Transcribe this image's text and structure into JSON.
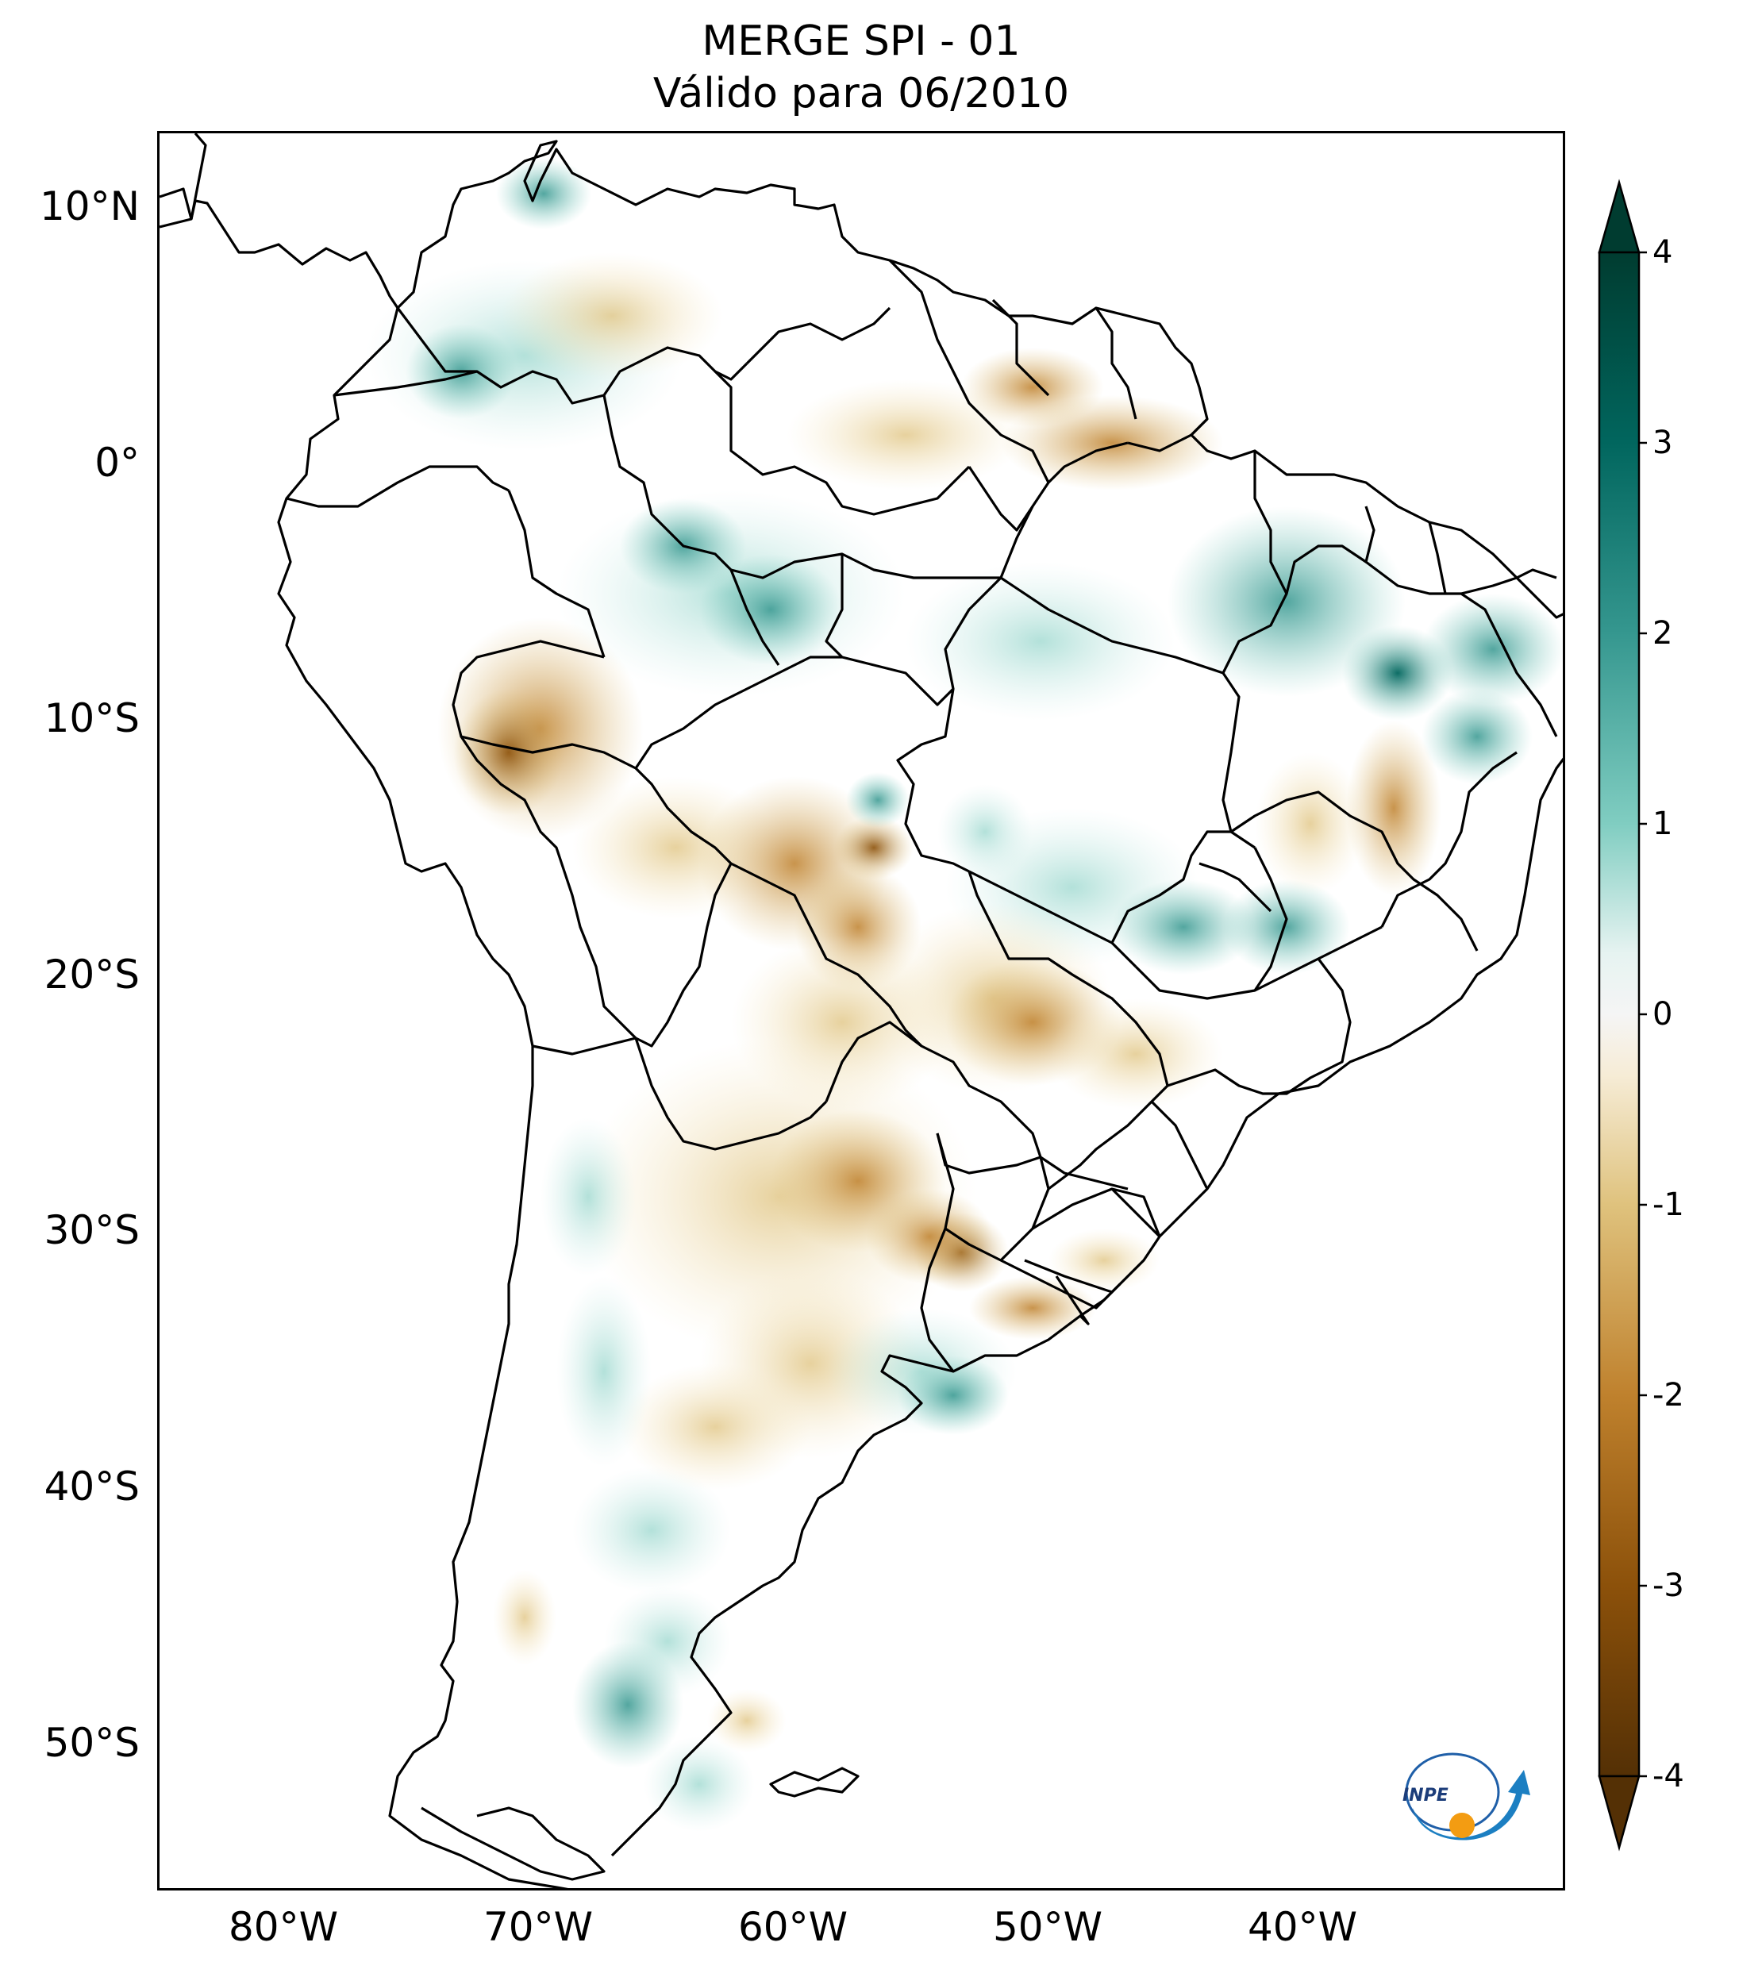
{
  "title": {
    "line1": "MERGE   SPI - 01",
    "line2": "Válido para 06/2010"
  },
  "map": {
    "variable": "SPI - 01",
    "dataset": "MERGE",
    "region": "South America",
    "lat_ticks": [
      "10°N",
      "0°",
      "10°S",
      "20°S",
      "30°S",
      "40°S",
      "50°S"
    ],
    "lon_ticks": [
      "80°W",
      "70°W",
      "60°W",
      "50°W",
      "40°W"
    ],
    "extent": {
      "lon_min": -85,
      "lon_max": -29.5,
      "lat_min": -56,
      "lat_max": 12.5
    }
  },
  "colorbar": {
    "colormap": "BrBG",
    "min": -4,
    "max": 4,
    "tick_labels": [
      "4",
      "3",
      "2",
      "1",
      "0",
      "-1",
      "-2",
      "-3",
      "-4"
    ],
    "extend": "both",
    "colors": {
      "max_end": "#003c30",
      "c3": "#01665e",
      "c2": "#35978f",
      "c1": "#80cdc1",
      "c0": "#f5f5f5",
      "cm1": "#dfc27d",
      "cm2": "#bf812d",
      "cm3": "#8c510a",
      "min_end": "#543005"
    }
  },
  "logo": {
    "text": "INPE"
  }
}
